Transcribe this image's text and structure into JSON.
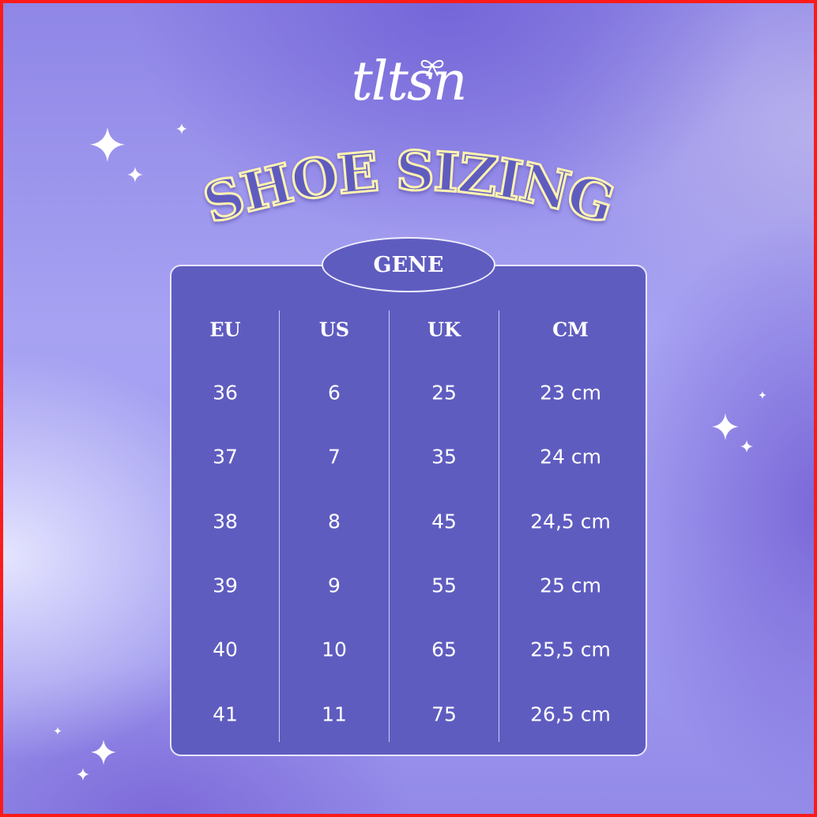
{
  "brand": {
    "logo_text": "tltsn"
  },
  "title": "SHOE SIZING",
  "model": "GENE",
  "colors": {
    "panel": "#5f5cc0",
    "title_outline": "#fff3b0",
    "border": "#ff1a1a",
    "text": "#ffffff"
  },
  "table": {
    "headers": [
      "EU",
      "US",
      "UK",
      "CM"
    ],
    "rows": [
      [
        "36",
        "6",
        "25",
        "23 cm"
      ],
      [
        "37",
        "7",
        "35",
        "24 cm"
      ],
      [
        "38",
        "8",
        "45",
        "24,5 cm"
      ],
      [
        "39",
        "9",
        "55",
        "25 cm"
      ],
      [
        "40",
        "10",
        "65",
        "25,5 cm"
      ],
      [
        "41",
        "11",
        "75",
        "26,5 cm"
      ]
    ]
  },
  "icons": [
    "sparkle-icon",
    "bow-icon"
  ]
}
